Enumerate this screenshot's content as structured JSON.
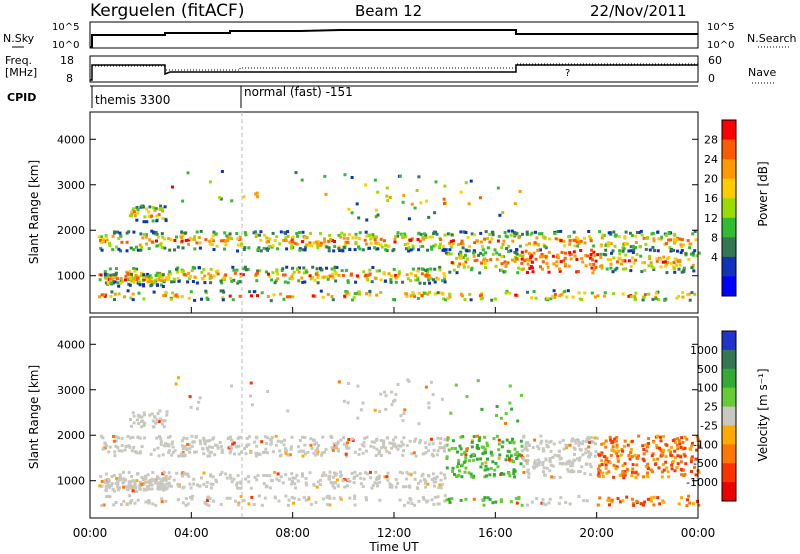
{
  "header": {
    "station": "Kerguelen (fitACF)",
    "beam": "Beam 12",
    "date": "22/Nov/2011"
  },
  "sky_panel": {
    "left_label": "N.Sky",
    "left_ticks": [
      "10^5",
      "10^0"
    ],
    "right_label": "N.Search",
    "right_ticks": [
      "10^5",
      "10^0"
    ]
  },
  "freq_panel": {
    "left_label_1": "Freq.",
    "left_label_2": "[MHz]",
    "left_ticks": [
      "18",
      "8"
    ],
    "right_label": "Nave",
    "right_ticks": [
      "60",
      "0"
    ]
  },
  "cpid_panel": {
    "label": "CPID",
    "programs": [
      {
        "name": "themis 3300",
        "start_hour": 0
      },
      {
        "name": "normal (fast) -151",
        "start_hour": 6
      }
    ]
  },
  "chart_data": [
    {
      "type": "heatmap",
      "name": "power",
      "ylabel": "Slant Range [km]",
      "xlabel": "Time UT",
      "xlim": [
        0,
        24
      ],
      "ylim": [
        180,
        4600
      ],
      "x_ticks": [
        "00:00",
        "04:00",
        "08:00",
        "12:00",
        "16:00",
        "20:00",
        "00:00"
      ],
      "y_ticks": [
        1000,
        2000,
        3000,
        4000
      ],
      "colorbar": {
        "label": "Power [dB]",
        "ticks": [
          "28",
          "24",
          "20",
          "16",
          "12",
          "8",
          "4"
        ],
        "colors": [
          "#ff0000",
          "#ff5a00",
          "#ff9900",
          "#ffcc00",
          "#99dd00",
          "#33bb33",
          "#337755",
          "#1133bb",
          "#0000ff"
        ]
      }
    },
    {
      "type": "heatmap",
      "name": "velocity",
      "ylabel": "Slant Range [km]",
      "xlabel": "Time UT",
      "xlim": [
        0,
        24
      ],
      "ylim": [
        180,
        4600
      ],
      "x_ticks": [
        "00:00",
        "04:00",
        "08:00",
        "12:00",
        "16:00",
        "20:00",
        "00:00"
      ],
      "y_ticks": [
        1000,
        2000,
        3000,
        4000
      ],
      "colorbar": {
        "label": "Velocity [m s⁻¹]",
        "ticks": [
          "1000",
          "500",
          "100",
          "25",
          "-25",
          "-100",
          "-500",
          "-1000"
        ],
        "colors": [
          "#2233cc",
          "#337755",
          "#33aa33",
          "#66cc33",
          "#c8c8c0",
          "#ffaa00",
          "#ff7700",
          "#ff3300",
          "#ee0000"
        ]
      }
    }
  ],
  "x_axis": {
    "ticks": [
      "00:00",
      "04:00",
      "08:00",
      "12:00",
      "16:00",
      "20:00",
      "00:00"
    ],
    "label": "Time UT"
  }
}
